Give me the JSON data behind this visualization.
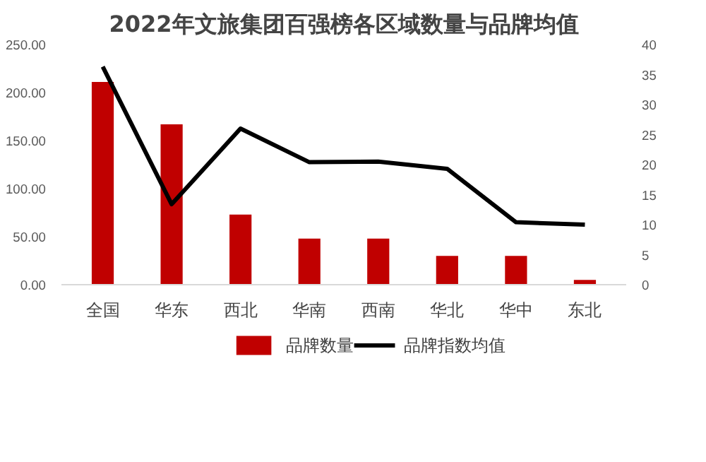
{
  "chart_data": {
    "type": "bar",
    "title": "2022年文旅集团百强榜各区域数量与品牌均值",
    "categories": [
      "全国",
      "华东",
      "西北",
      "华南",
      "西南",
      "华北",
      "华中",
      "东北"
    ],
    "series": [
      {
        "name": "品牌数量",
        "color": "#c00000",
        "values": [
          211,
          167,
          73,
          48,
          48,
          30,
          30,
          5
        ]
      },
      {
        "name": "品牌指数均值",
        "type": "line",
        "axis": "y2",
        "color": "#000000",
        "values": [
          36.3,
          13.4,
          26,
          20.4,
          20.5,
          19.3,
          10.4,
          10.0
        ]
      }
    ],
    "ylim": [
      0,
      250
    ],
    "yticks": [
      {
        "value": 0,
        "label": "0.00"
      },
      {
        "value": 50,
        "label": "50.00"
      },
      {
        "value": 100,
        "label": "100.00"
      },
      {
        "value": 150,
        "label": "150.00"
      },
      {
        "value": 200,
        "label": "200.00"
      },
      {
        "value": 250,
        "label": "250.00"
      }
    ],
    "y2lim": [
      0,
      40
    ],
    "y2ticks": [
      0,
      5,
      10,
      15,
      20,
      25,
      30,
      35,
      40
    ],
    "grid": false,
    "legend": "bottom"
  }
}
